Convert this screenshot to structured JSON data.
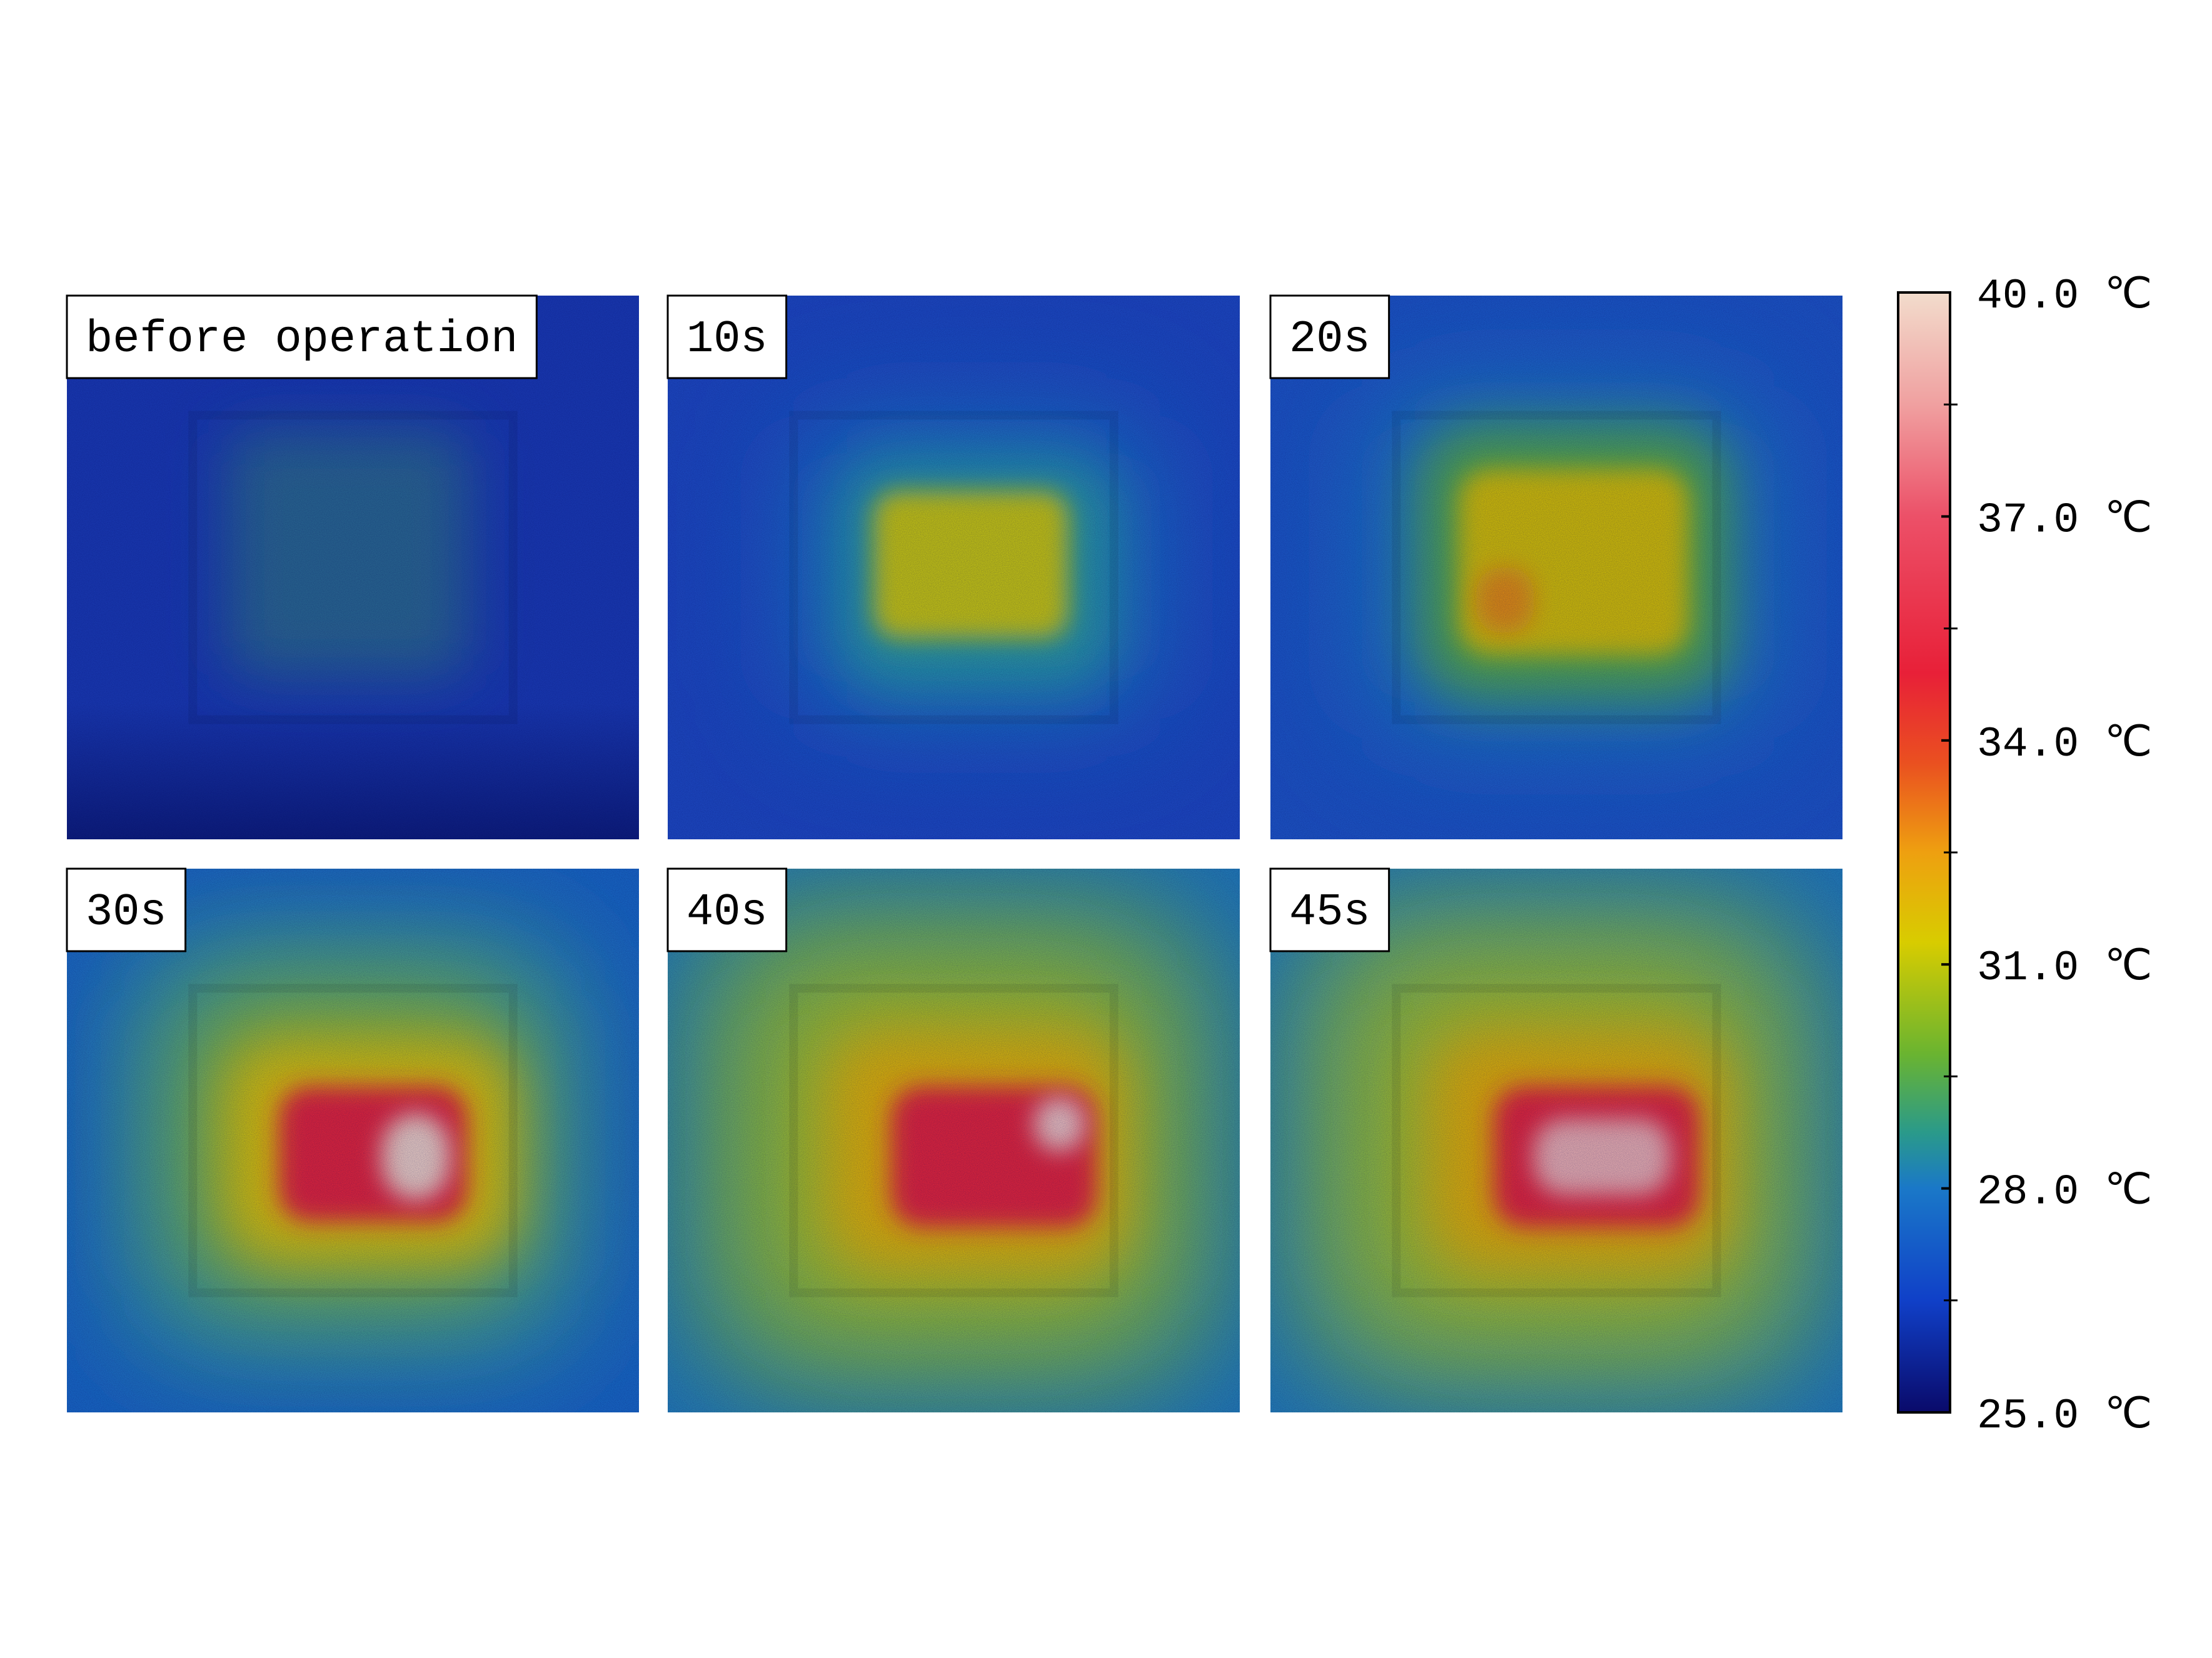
{
  "panels": [
    {
      "label": "before operation"
    },
    {
      "label": "10s"
    },
    {
      "label": "20s"
    },
    {
      "label": "30s"
    },
    {
      "label": "40s"
    },
    {
      "label": "45s"
    }
  ],
  "colorbar": {
    "range": [
      25,
      40
    ],
    "ticks": [
      {
        "value": 40,
        "label": "40.0 ℃"
      },
      {
        "value": 37,
        "label": "37.0 ℃"
      },
      {
        "value": 34,
        "label": "34.0 ℃"
      },
      {
        "value": 31,
        "label": "31.0 ℃"
      },
      {
        "value": 28,
        "label": "28.0 ℃"
      },
      {
        "value": 25,
        "label": "25.0 ℃"
      }
    ],
    "minor_ticks": [
      38.5,
      35.5,
      32.5,
      29.5,
      26.5
    ]
  }
}
